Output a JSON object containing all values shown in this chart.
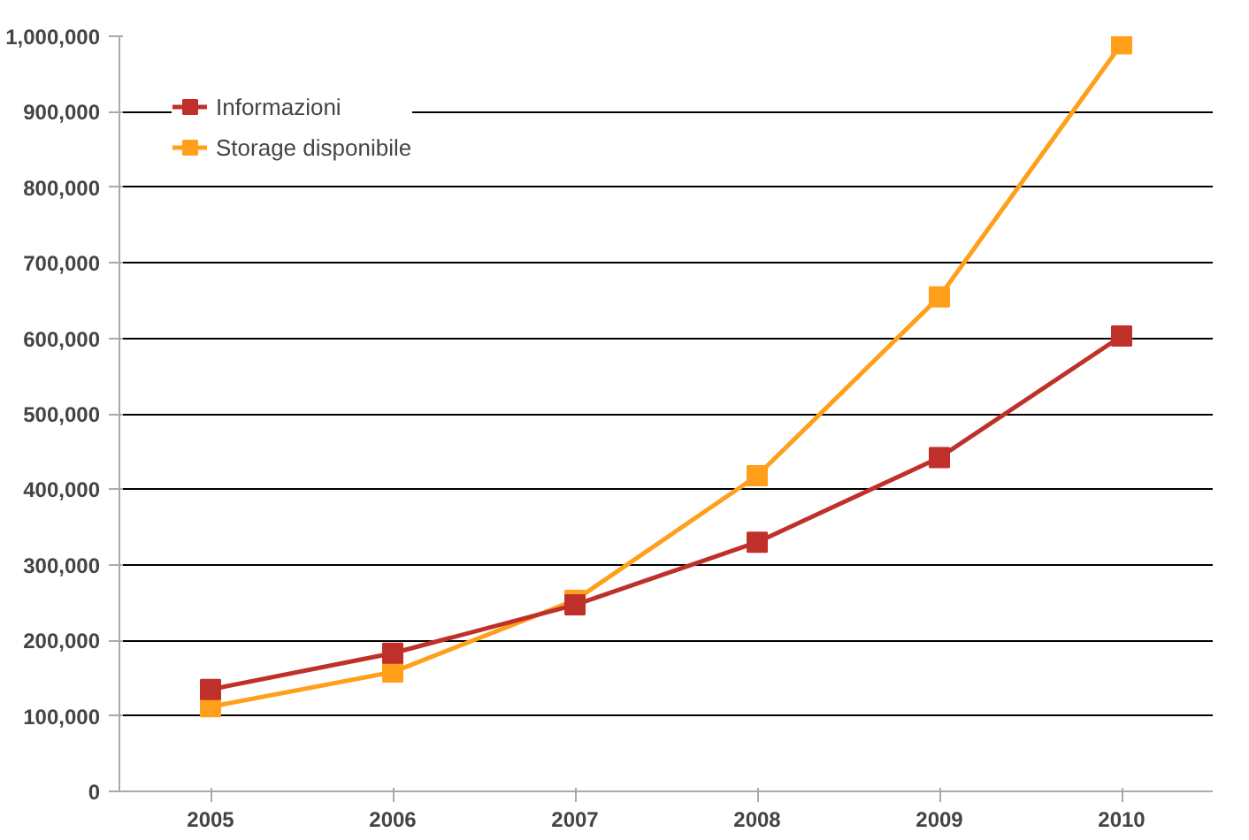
{
  "chart_data": {
    "type": "line",
    "categories": [
      "2005",
      "2006",
      "2007",
      "2008",
      "2009",
      "2010"
    ],
    "series": [
      {
        "name": "Informazioni",
        "color": "#c0302a",
        "values": [
          135000,
          183000,
          247000,
          330000,
          442000,
          603000
        ]
      },
      {
        "name": "Storage disponibile",
        "color": "#ff9f1a",
        "values": [
          112000,
          158000,
          253000,
          418000,
          655000,
          990000
        ]
      }
    ],
    "ylim": [
      0,
      1000000
    ],
    "yticks": [
      {
        "value": 0,
        "label": "0"
      },
      {
        "value": 100000,
        "label": "100,000"
      },
      {
        "value": 200000,
        "label": "200,000"
      },
      {
        "value": 300000,
        "label": "300,000"
      },
      {
        "value": 400000,
        "label": "400,000"
      },
      {
        "value": 500000,
        "label": "500,000"
      },
      {
        "value": 600000,
        "label": "600,000"
      },
      {
        "value": 700000,
        "label": "700,000"
      },
      {
        "value": 800000,
        "label": "800,000"
      },
      {
        "value": 900000,
        "label": "900,000"
      },
      {
        "value": 1000000,
        "label": "1,000,000"
      }
    ],
    "grid": "y",
    "legend": "top left",
    "marker": "square",
    "line_style": "solid"
  }
}
